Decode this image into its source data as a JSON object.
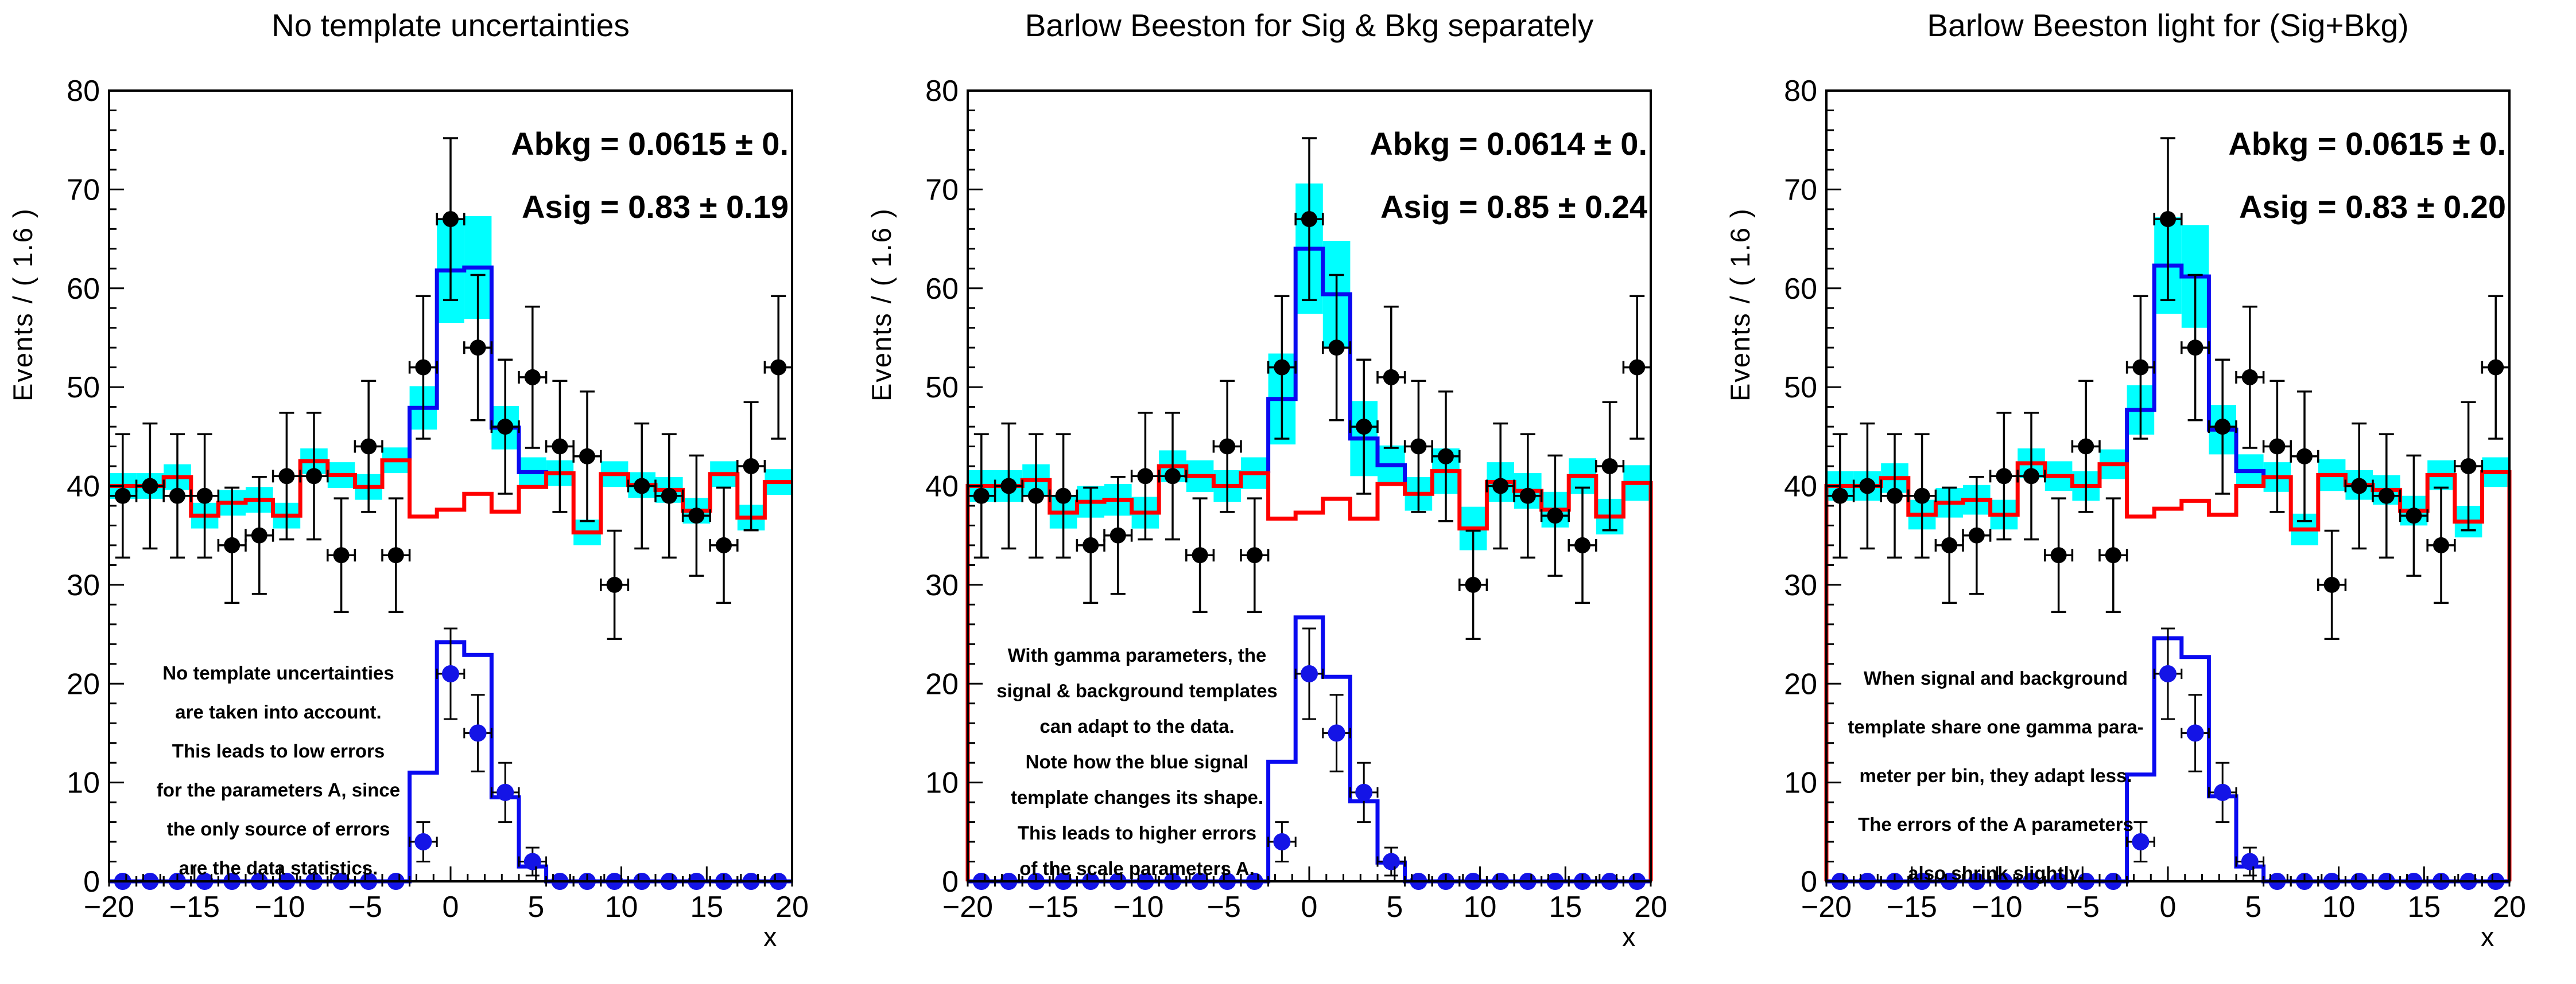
{
  "app": {
    "type": "ROOT RooFit fit canvas",
    "background": "#ffffff"
  },
  "colors": {
    "uncertainty_band": "#00ffff",
    "signal_line": "#0a0af0",
    "background_line": "#ff0000",
    "data_marker": "#000000",
    "template_marker": "#1414e6"
  },
  "axes": {
    "x_label": "x",
    "y_label": "Events / ( 1.6 )",
    "x_min": -20,
    "x_max": 20,
    "y_min": 0,
    "y_max": 80,
    "n_bins": 25,
    "bin_width": 1.6,
    "x_ticks": [
      "−20",
      "−15",
      "−10",
      "−5",
      "0",
      "5",
      "10",
      "15",
      "20"
    ],
    "y_ticks": [
      "0",
      "10",
      "20",
      "30",
      "40",
      "50",
      "60",
      "70",
      "80"
    ]
  },
  "panels": [
    {
      "title": "No template uncertainties",
      "param_lines": [
        "Abkg =  0.0615 ± 0.",
        "Asig =  0.83 ± 0.19"
      ],
      "annotation_lines": [
        "No template uncertainties",
        "are taken into account.",
        "This leads to low errors",
        "for the parameters A, since",
        "the only source of errors",
        "are the data statistics."
      ]
    },
    {
      "title": "Barlow Beeston for Sig & Bkg separately",
      "param_lines": [
        "Abkg =  0.0614 ± 0.",
        "Asig =  0.85 ± 0.24"
      ],
      "annotation_lines": [
        "With gamma parameters, the",
        "signal & background templates",
        "can adapt to the data.",
        "Note how the blue signal",
        "template changes its shape.",
        "This leads to higher errors",
        "of the scale parameters A."
      ]
    },
    {
      "title": "Barlow Beeston light for (Sig+Bkg)",
      "param_lines": [
        "Abkg =  0.0615 ± 0.",
        "Asig =  0.83 ± 0.20"
      ],
      "annotation_lines": [
        "When signal and background",
        "template share one gamma para-",
        "meter per bin, they adapt less.",
        "The errors of the A parameters",
        "also shrink slightly."
      ]
    }
  ],
  "chart_data": [
    {
      "type": "bar",
      "subtype": "histogram-fit",
      "title": "No template uncertainties",
      "xlabel": "x",
      "ylabel": "Events / ( 1.6 )",
      "xlim": [
        -20,
        20
      ],
      "ylim": [
        0,
        80
      ],
      "data_errors": "poisson_sqrt",
      "bkg_edge_verticals": false,
      "data_values": [
        39,
        40,
        39,
        39,
        34,
        35,
        41,
        41,
        33,
        44,
        33,
        52,
        67,
        54,
        46,
        51,
        44,
        43,
        30,
        40,
        39,
        37,
        34,
        42,
        52
      ],
      "total_model": [
        40.0,
        40.0,
        40.9,
        37.0,
        38.3,
        38.6,
        37.0,
        42.5,
        41.1,
        39.9,
        42.6,
        47.9,
        61.8,
        62.1,
        45.9,
        41.4,
        41.3,
        35.3,
        41.2,
        40.1,
        39.6,
        37.5,
        41.2,
        36.8,
        40.4
      ],
      "background_model": [
        40.0,
        40.0,
        40.9,
        37.0,
        38.3,
        38.6,
        37.0,
        42.5,
        41.1,
        39.9,
        42.6,
        36.9,
        37.6,
        39.2,
        37.4,
        39.9,
        41.3,
        35.3,
        41.2,
        40.1,
        39.6,
        37.5,
        41.2,
        36.8,
        40.4
      ],
      "band_halfwidth": [
        1.3,
        1.3,
        1.3,
        1.3,
        1.3,
        1.3,
        1.3,
        1.3,
        1.3,
        1.3,
        1.3,
        2.2,
        5.3,
        5.2,
        2.2,
        1.5,
        1.3,
        1.3,
        1.3,
        1.3,
        1.3,
        1.3,
        1.3,
        1.3,
        1.3
      ],
      "signal_component": [
        0,
        0,
        0,
        0,
        0,
        0,
        0,
        0,
        0,
        0,
        0,
        11.0,
        24.2,
        22.9,
        8.5,
        1.5,
        0,
        0,
        0,
        0,
        0,
        0,
        0,
        0,
        0
      ],
      "template_points": [
        0,
        0,
        0,
        0,
        0,
        0,
        0,
        0,
        0,
        0,
        0,
        4,
        21,
        15,
        9,
        2,
        0,
        0,
        0,
        0,
        0,
        0,
        0,
        0,
        0
      ]
    },
    {
      "type": "bar",
      "subtype": "histogram-fit",
      "title": "Barlow Beeston for Sig & Bkg separately",
      "xlabel": "x",
      "ylabel": "Events / ( 1.6 )",
      "xlim": [
        -20,
        20
      ],
      "ylim": [
        0,
        80
      ],
      "data_errors": "poisson_sqrt",
      "bkg_edge_verticals": true,
      "data_values": [
        39,
        40,
        39,
        39,
        34,
        35,
        41,
        41,
        33,
        44,
        33,
        52,
        67,
        54,
        46,
        51,
        44,
        43,
        30,
        40,
        39,
        37,
        34,
        42,
        52
      ],
      "total_model": [
        40.0,
        40.0,
        40.6,
        37.3,
        38.4,
        38.6,
        37.3,
        42.0,
        41.0,
        40.0,
        41.3,
        48.8,
        64.0,
        59.4,
        44.8,
        42.1,
        39.2,
        41.5,
        35.7,
        40.4,
        39.5,
        37.6,
        41.0,
        36.9,
        40.3
      ],
      "background_model": [
        40.0,
        40.0,
        40.6,
        37.3,
        38.4,
        38.6,
        37.3,
        42.0,
        41.0,
        40.0,
        41.3,
        36.7,
        37.3,
        38.7,
        36.7,
        40.2,
        39.2,
        41.5,
        35.7,
        40.4,
        39.5,
        37.6,
        41.0,
        36.9,
        40.3
      ],
      "band_halfwidth": [
        1.6,
        1.6,
        1.6,
        1.6,
        1.6,
        1.6,
        1.6,
        1.6,
        1.6,
        1.6,
        1.6,
        4.6,
        6.6,
        5.4,
        3.8,
        2.0,
        1.7,
        2.3,
        2.2,
        2.0,
        1.8,
        1.8,
        1.8,
        1.8,
        1.8
      ],
      "signal_component": [
        0,
        0,
        0,
        0,
        0,
        0,
        0,
        0,
        0,
        0,
        0,
        12.1,
        26.7,
        20.7,
        8.1,
        1.9,
        0,
        0,
        0,
        0,
        0,
        0,
        0,
        0,
        0
      ],
      "template_points": [
        0,
        0,
        0,
        0,
        0,
        0,
        0,
        0,
        0,
        0,
        0,
        4,
        21,
        15,
        9,
        2,
        0,
        0,
        0,
        0,
        0,
        0,
        0,
        0,
        0
      ]
    },
    {
      "type": "bar",
      "subtype": "histogram-fit",
      "title": "Barlow Beeston light for (Sig+Bkg)",
      "xlabel": "x",
      "ylabel": "Events / ( 1.6 )",
      "xlim": [
        -20,
        20
      ],
      "ylim": [
        0,
        80
      ],
      "data_errors": "poisson_sqrt",
      "bkg_edge_verticals": true,
      "data_values": [
        39,
        40,
        39,
        39,
        34,
        35,
        41,
        41,
        33,
        44,
        33,
        52,
        67,
        54,
        46,
        51,
        44,
        43,
        30,
        40,
        39,
        37,
        34,
        42,
        52
      ],
      "total_model": [
        40.0,
        40.0,
        40.8,
        37.1,
        38.3,
        38.6,
        37.1,
        42.3,
        41.0,
        40.0,
        42.2,
        47.7,
        62.3,
        61.2,
        45.7,
        41.5,
        40.9,
        35.6,
        41.1,
        40.1,
        39.6,
        37.5,
        41.1,
        36.4,
        41.4
      ],
      "background_model": [
        40.0,
        40.0,
        40.8,
        37.1,
        38.3,
        38.6,
        37.1,
        42.3,
        41.0,
        40.0,
        42.2,
        36.9,
        37.7,
        38.5,
        37.1,
        40.0,
        40.9,
        35.6,
        41.1,
        40.1,
        39.6,
        37.5,
        41.1,
        36.4,
        41.4
      ],
      "band_halfwidth": [
        1.5,
        1.5,
        1.5,
        1.5,
        1.5,
        1.5,
        1.5,
        1.5,
        1.5,
        1.5,
        1.5,
        2.5,
        4.9,
        5.2,
        2.5,
        1.7,
        1.5,
        1.6,
        1.6,
        1.5,
        1.5,
        1.5,
        1.5,
        1.6,
        1.5
      ],
      "signal_component": [
        0,
        0,
        0,
        0,
        0,
        0,
        0,
        0,
        0,
        0,
        0,
        10.8,
        24.6,
        22.7,
        8.6,
        1.5,
        0,
        0,
        0,
        0,
        0,
        0,
        0,
        0,
        0
      ],
      "template_points": [
        0,
        0,
        0,
        0,
        0,
        0,
        0,
        0,
        0,
        0,
        0,
        4,
        21,
        15,
        9,
        2,
        0,
        0,
        0,
        0,
        0,
        0,
        0,
        0,
        0
      ]
    }
  ]
}
